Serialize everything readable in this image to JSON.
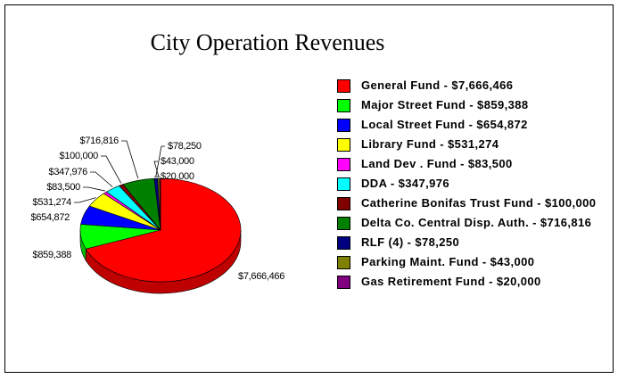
{
  "chart_data": {
    "type": "pie",
    "title": "City Operation Revenues",
    "categories": [
      "General Fund - $7,666,466",
      "Major Street Fund - $859,388",
      "Local Street Fund - $654,872",
      "Library Fund - $531,274",
      "Land Dev . Fund - $83,500",
      "DDA - $347,976",
      "Catherine Bonifas Trust Fund - $100,000",
      "Delta Co. Central Disp. Auth. - $716,816",
      "RLF (4) - $78,250",
      "Parking Maint. Fund - $43,000",
      "Gas Retirement Fund - $20,000"
    ],
    "values": [
      7666466,
      859388,
      654872,
      531274,
      83500,
      347976,
      100000,
      716816,
      78250,
      43000,
      20000
    ],
    "value_labels": [
      "$7,666,466",
      "$859,388",
      "$654,872",
      "$531,274",
      "$83,500",
      "$347,976",
      "$100,000",
      "$716,816",
      "$78,250",
      "$43,000",
      "$20,000"
    ],
    "colors": [
      "#ff0000",
      "#00ff00",
      "#0000ff",
      "#ffff00",
      "#ff00ff",
      "#00ffff",
      "#800000",
      "#008000",
      "#000080",
      "#808000",
      "#800080"
    ],
    "legend": "right"
  }
}
